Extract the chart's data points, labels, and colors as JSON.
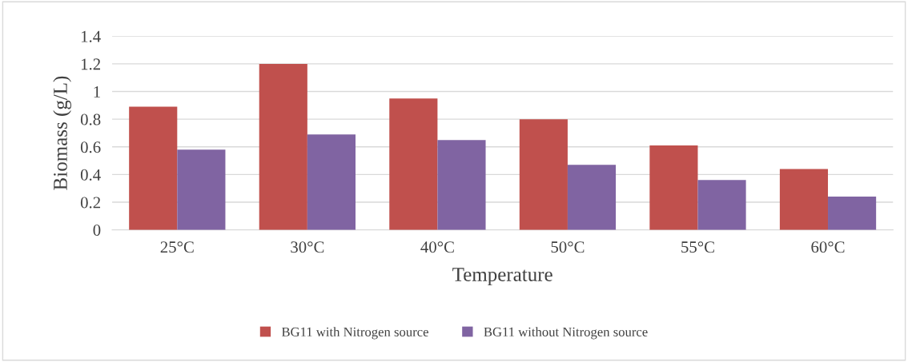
{
  "chart_data": {
    "type": "bar",
    "xlabel": "Temperature",
    "ylabel": "Biomass (g/L)",
    "categories": [
      "25°C",
      "30°C",
      "40°C",
      "50°C",
      "55°C",
      "60°C"
    ],
    "series": [
      {
        "name": "BG11 with Nitrogen source",
        "color": "#c0504d",
        "values": [
          0.89,
          1.2,
          0.95,
          0.8,
          0.61,
          0.44
        ]
      },
      {
        "name": "BG11 without Nitrogen source",
        "color": "#8064a2",
        "values": [
          0.58,
          0.69,
          0.65,
          0.47,
          0.36,
          0.24
        ]
      }
    ],
    "ylim": [
      0,
      1.4
    ],
    "yticks": [
      0,
      0.2,
      0.4,
      0.6,
      0.8,
      1,
      1.2,
      1.4
    ],
    "grid": "y",
    "legend": "bottom"
  }
}
